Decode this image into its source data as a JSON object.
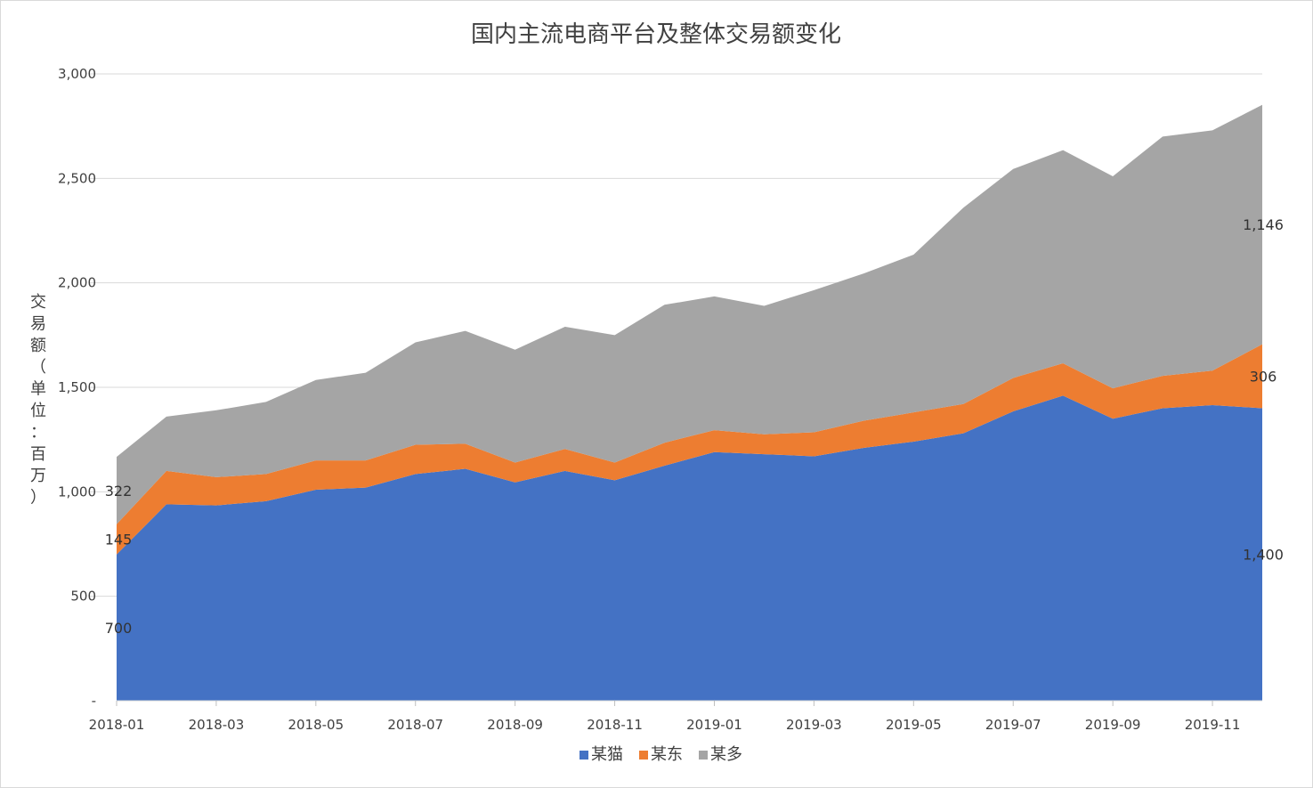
{
  "chart_data": {
    "type": "area",
    "stacked": true,
    "title": "国内主流电商平台及整体交易额变化",
    "ylabel": "交易额（单位：百万）",
    "xlabel": "",
    "ylim": [
      0,
      3000
    ],
    "y_ticks": [
      {
        "value": 0,
        "label": "-"
      },
      {
        "value": 500,
        "label": "500"
      },
      {
        "value": 1000,
        "label": "1,000"
      },
      {
        "value": 1500,
        "label": "1,500"
      },
      {
        "value": 2000,
        "label": "2,000"
      },
      {
        "value": 2500,
        "label": "2,500"
      },
      {
        "value": 3000,
        "label": "3,000"
      }
    ],
    "x": [
      "2018-01",
      "2018-02",
      "2018-03",
      "2018-04",
      "2018-05",
      "2018-06",
      "2018-07",
      "2018-08",
      "2018-09",
      "2018-10",
      "2018-11",
      "2018-12",
      "2019-01",
      "2019-02",
      "2019-03",
      "2019-04",
      "2019-05",
      "2019-06",
      "2019-07",
      "2019-08",
      "2019-09",
      "2019-10",
      "2019-11",
      "2019-12"
    ],
    "x_tick_labels": [
      "2018-01",
      "2018-03",
      "2018-05",
      "2018-07",
      "2018-09",
      "2018-11",
      "2019-01",
      "2019-03",
      "2019-05",
      "2019-07",
      "2019-09",
      "2019-11"
    ],
    "grid": true,
    "legend_position": "bottom",
    "series": [
      {
        "name": "某猫",
        "color": "#4472C4",
        "values": [
          700,
          940,
          935,
          955,
          1010,
          1020,
          1085,
          1110,
          1045,
          1100,
          1055,
          1125,
          1190,
          1180,
          1170,
          1210,
          1240,
          1280,
          1385,
          1460,
          1350,
          1400,
          1415,
          1400
        ]
      },
      {
        "name": "某东",
        "color": "#ED7D31",
        "values": [
          145,
          160,
          135,
          130,
          140,
          130,
          140,
          120,
          95,
          105,
          85,
          110,
          105,
          95,
          115,
          130,
          140,
          140,
          160,
          155,
          145,
          155,
          165,
          306
        ]
      },
      {
        "name": "某多",
        "color": "#A5A5A5",
        "values": [
          322,
          260,
          320,
          345,
          385,
          420,
          490,
          540,
          540,
          585,
          610,
          660,
          640,
          615,
          680,
          705,
          755,
          940,
          1000,
          1020,
          1015,
          1145,
          1150,
          1146
        ]
      }
    ],
    "data_labels": [
      {
        "series": 0,
        "index": 0,
        "text": "700"
      },
      {
        "series": 1,
        "index": 0,
        "text": "145"
      },
      {
        "series": 2,
        "index": 0,
        "text": "322"
      },
      {
        "series": 0,
        "index": 23,
        "text": "1,400"
      },
      {
        "series": 1,
        "index": 23,
        "text": "306"
      },
      {
        "series": 2,
        "index": 23,
        "text": "1,146"
      }
    ]
  }
}
